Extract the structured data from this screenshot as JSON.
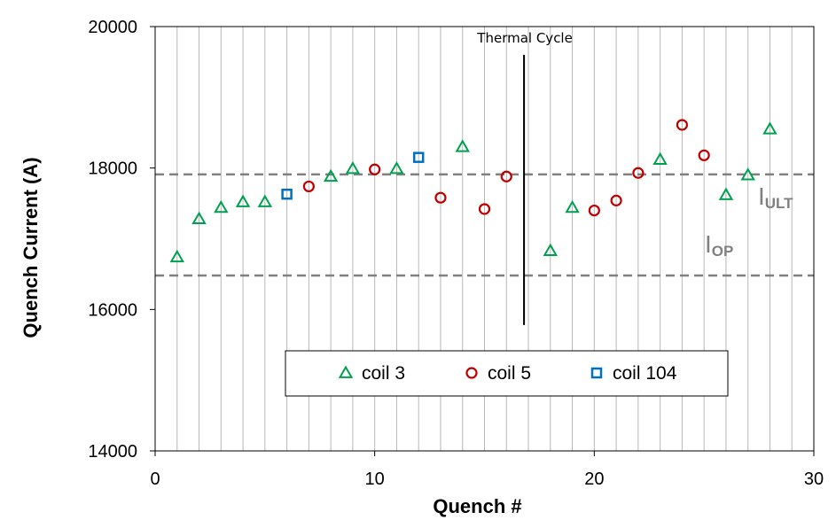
{
  "chart_data": {
    "type": "scatter",
    "title": "",
    "xlabel": "Quench #",
    "ylabel": "Quench Current (A)",
    "xlim": [
      0,
      30
    ],
    "ylim": [
      14000,
      20000
    ],
    "xticks": [
      0,
      10,
      20,
      30
    ],
    "yticks": [
      14000,
      16000,
      18000,
      20000
    ],
    "vertical_grid": "every 1 unit",
    "legend_position": "bottom-center",
    "series": [
      {
        "name": "coil 3",
        "marker": "triangle",
        "color": "#00A050",
        "points": [
          [
            1,
            16740
          ],
          [
            2,
            17280
          ],
          [
            3,
            17440
          ],
          [
            4,
            17520
          ],
          [
            5,
            17520
          ],
          [
            8,
            17880
          ],
          [
            9,
            17990
          ],
          [
            11,
            17990
          ],
          [
            14,
            18300
          ],
          [
            18,
            16830
          ],
          [
            19,
            17440
          ],
          [
            23,
            18120
          ],
          [
            26,
            17620
          ],
          [
            27,
            17900
          ],
          [
            28,
            18550
          ]
        ]
      },
      {
        "name": "coil 5",
        "marker": "circle",
        "color": "#C00000",
        "points": [
          [
            7,
            17740
          ],
          [
            10,
            17980
          ],
          [
            13,
            17580
          ],
          [
            15,
            17420
          ],
          [
            16,
            17880
          ],
          [
            20,
            17400
          ],
          [
            21,
            17540
          ],
          [
            22,
            17930
          ],
          [
            24,
            18610
          ],
          [
            25,
            18180
          ]
        ]
      },
      {
        "name": "coil 104",
        "marker": "square",
        "color": "#0070C0",
        "points": [
          [
            6,
            17630
          ],
          [
            12,
            18150
          ]
        ]
      }
    ],
    "reference_lines": [
      {
        "label_main": "I",
        "label_sub": "ULT",
        "value": 17910,
        "color": "#808080",
        "style": "dashed"
      },
      {
        "label_main": "I",
        "label_sub": "OP",
        "value": 16480,
        "color": "#808080",
        "style": "dashed"
      }
    ],
    "annotations": [
      {
        "text": "Thermal Cycle",
        "x": 16.8,
        "y_from": 15780,
        "y_to": 19600
      }
    ]
  }
}
